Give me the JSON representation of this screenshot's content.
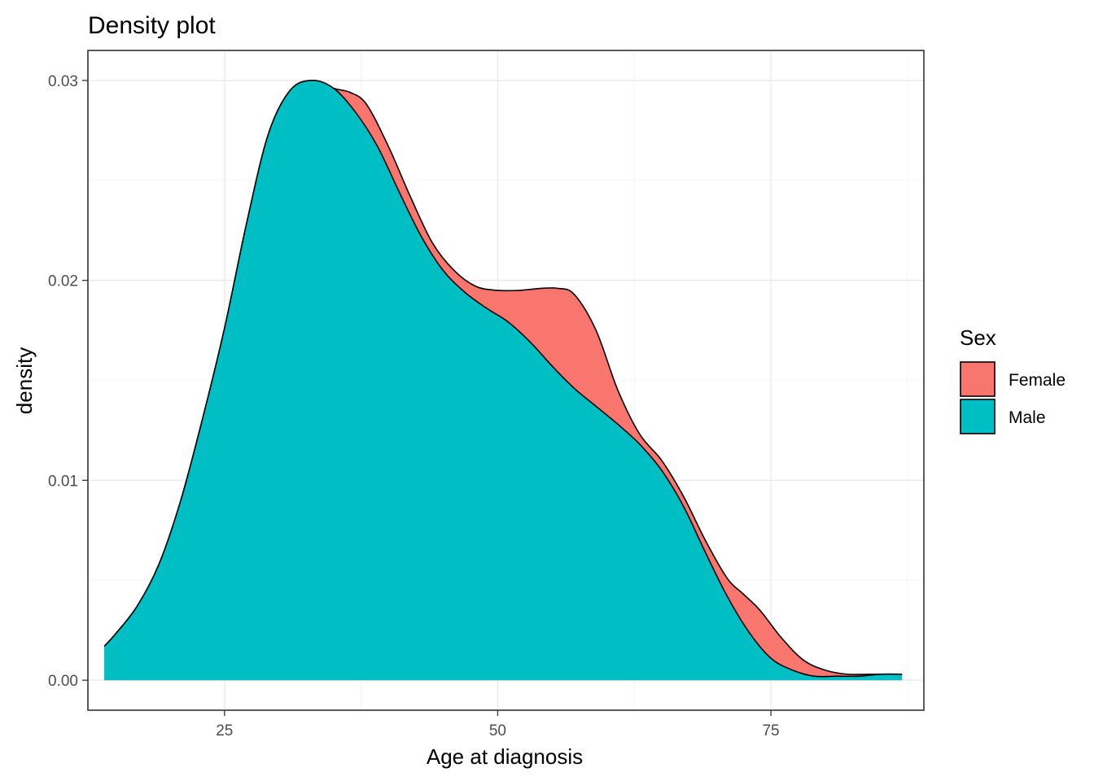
{
  "chart_data": {
    "type": "area",
    "title": "Density plot",
    "xlabel": "Age at diagnosis",
    "ylabel": "density",
    "xlim": [
      12.5,
      89
    ],
    "ylim": [
      -0.0015,
      0.0315
    ],
    "x_ticks": [
      25,
      50,
      75
    ],
    "x_tick_labels": [
      "25",
      "50",
      "75"
    ],
    "y_ticks": [
      0.0,
      0.01,
      0.02,
      0.03
    ],
    "y_tick_labels": [
      "0.00",
      "0.01",
      "0.02",
      "0.03"
    ],
    "grid": true,
    "legend": {
      "title": "Sex",
      "position": "right"
    },
    "series": [
      {
        "name": "Female",
        "color": "#F8766D",
        "x": [
          14,
          15,
          17,
          19,
          21,
          23,
          25,
          27,
          29,
          31,
          33,
          35,
          36.5,
          38,
          40,
          42,
          44,
          46,
          48,
          50,
          52,
          54,
          55.5,
          57,
          59,
          61,
          63,
          65,
          67,
          69,
          71,
          72.5,
          74,
          76,
          78,
          80,
          82,
          84,
          86,
          87
        ],
        "y": [
          0.0017,
          0.0023,
          0.0037,
          0.0058,
          0.009,
          0.0131,
          0.0176,
          0.0228,
          0.0273,
          0.0295,
          0.03,
          0.0296,
          0.0294,
          0.0288,
          0.0267,
          0.0242,
          0.0219,
          0.0205,
          0.0197,
          0.0195,
          0.0195,
          0.0196,
          0.0196,
          0.0193,
          0.0175,
          0.0145,
          0.0123,
          0.011,
          0.0092,
          0.007,
          0.0051,
          0.0043,
          0.0035,
          0.0021,
          0.001,
          0.0005,
          0.0003,
          0.0003,
          0.0003,
          0.0003
        ]
      },
      {
        "name": "Male",
        "color": "#00BFC4",
        "x": [
          14,
          15,
          17,
          19,
          21,
          23,
          25,
          27,
          29,
          31,
          33,
          35,
          37,
          39,
          41,
          43,
          45,
          47,
          49,
          51,
          53,
          55,
          57,
          59,
          61,
          63,
          65,
          67,
          69,
          71,
          73,
          75,
          77,
          79,
          81,
          83,
          85,
          87
        ],
        "y": [
          0.0017,
          0.0023,
          0.0037,
          0.0058,
          0.009,
          0.0131,
          0.0176,
          0.0228,
          0.0273,
          0.0295,
          0.03,
          0.0296,
          0.0284,
          0.0267,
          0.0244,
          0.0222,
          0.0205,
          0.0194,
          0.0186,
          0.0179,
          0.0169,
          0.0157,
          0.0146,
          0.0137,
          0.0128,
          0.0118,
          0.0105,
          0.0087,
          0.0064,
          0.0042,
          0.0024,
          0.0011,
          0.0005,
          0.0002,
          0.0002,
          0.0002,
          0.0003,
          0.0003
        ]
      }
    ]
  }
}
